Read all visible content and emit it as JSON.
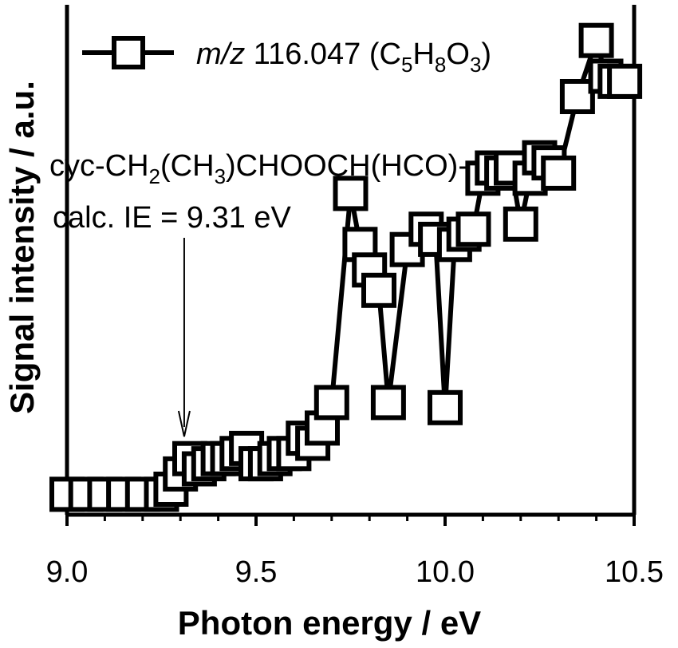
{
  "chart_data": {
    "type": "scatter",
    "xlabel": "Photon energy / eV",
    "ylabel": "Signal intensity / a.u.",
    "xlim": [
      9.0,
      10.5
    ],
    "ylim": [
      0,
      1
    ],
    "x_ticks": [
      9.0,
      9.5,
      10.0,
      10.5
    ],
    "x_tick_labels": [
      "9.0",
      "9.5",
      "10.0",
      "10.5"
    ],
    "series": [
      {
        "legend_prefix": "m/z",
        "legend_main": " 116.047 (C",
        "legend_sub1": "5",
        "legend_h": "H",
        "legend_sub2": "8",
        "legend_o": "O",
        "legend_sub3": "3",
        "legend_close": ")",
        "color": "#000000",
        "marker": "open-square",
        "x": [
          9.0,
          9.05,
          9.1,
          9.15,
          9.2,
          9.25,
          9.275,
          9.3,
          9.325,
          9.35,
          9.375,
          9.4,
          9.425,
          9.45,
          9.475,
          9.5,
          9.525,
          9.55,
          9.575,
          9.6,
          9.625,
          9.65,
          9.675,
          9.7,
          9.75,
          9.775,
          9.8,
          9.825,
          9.85,
          9.9,
          9.95,
          9.975,
          10.0,
          10.025,
          10.05,
          10.075,
          10.1,
          10.125,
          10.15,
          10.175,
          10.2,
          10.225,
          10.25,
          10.275,
          10.3,
          10.35,
          10.4,
          10.425,
          10.45,
          10.475
        ],
        "y": [
          0.04,
          0.04,
          0.04,
          0.04,
          0.04,
          0.04,
          0.05,
          0.08,
          0.11,
          0.09,
          0.1,
          0.11,
          0.11,
          0.12,
          0.13,
          0.1,
          0.1,
          0.11,
          0.12,
          0.12,
          0.15,
          0.14,
          0.17,
          0.22,
          0.63,
          0.53,
          0.48,
          0.44,
          0.22,
          0.52,
          0.56,
          0.54,
          0.21,
          0.53,
          0.55,
          0.56,
          0.66,
          0.68,
          0.67,
          0.68,
          0.57,
          0.66,
          0.7,
          0.69,
          0.67,
          0.82,
          0.93,
          0.86,
          0.85,
          0.85
        ]
      }
    ],
    "annotation": {
      "line1_a": "cyc-CH",
      "line1_sub1": "2",
      "line1_b": "(CH",
      "line1_sub2": "3",
      "line1_c": ")CHOOCH(HCO)-",
      "line2": "calc. IE = 9.31 eV",
      "arrow_x": 9.31
    }
  }
}
